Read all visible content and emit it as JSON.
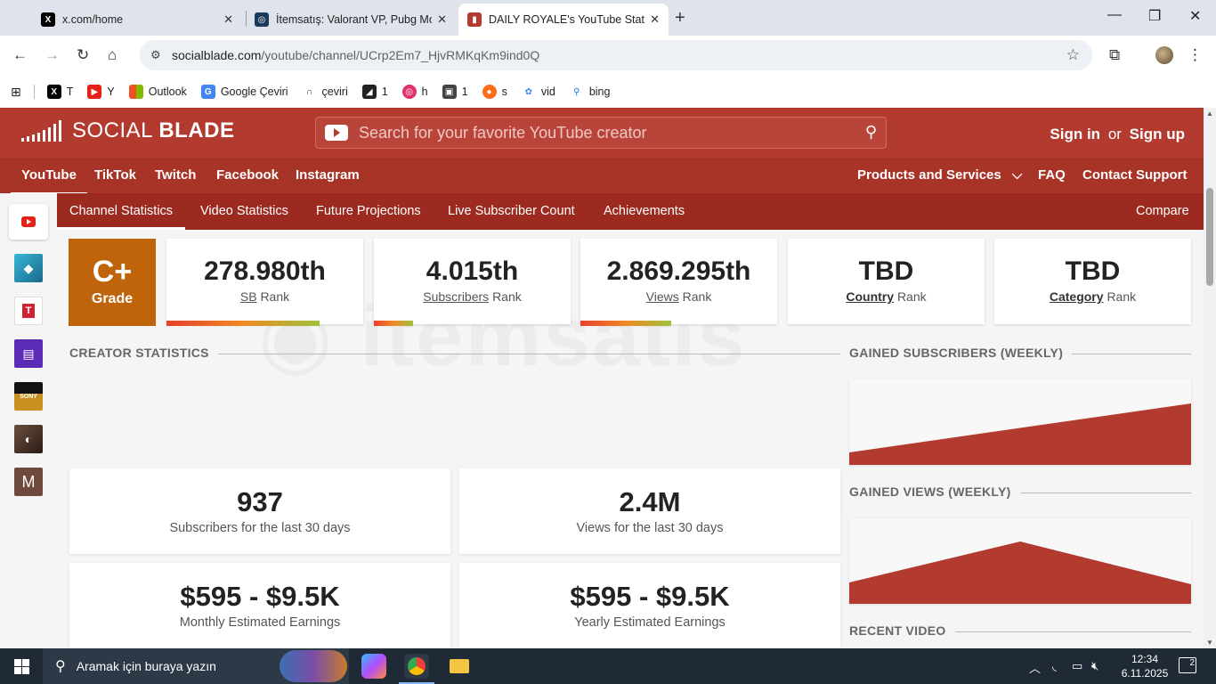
{
  "browser": {
    "tabs": [
      {
        "title": "x.com/home",
        "icon": "x-logo-icon",
        "active": false
      },
      {
        "title": "İtemsatış: Valorant VP, Pubg Mo",
        "icon": "itemsatis-icon",
        "active": false
      },
      {
        "title": "DAILY ROYALE's YouTube Statist",
        "icon": "socialblade-icon",
        "active": true
      }
    ],
    "url_host": "socialblade.com",
    "url_path": "/youtube/channel/UCrp2Em7_HjvRMKqKm9ind0Q",
    "bookmarks": [
      {
        "label": "T",
        "icon": "x-logo-icon"
      },
      {
        "label": "Y",
        "icon": "youtube-icon"
      },
      {
        "label": "Outlook",
        "icon": "microsoft-icon"
      },
      {
        "label": "Google Çeviri",
        "icon": "google-translate-icon"
      },
      {
        "label": "çeviri",
        "icon": "translate-icon"
      },
      {
        "label": "1",
        "icon": "bookmark-icon"
      },
      {
        "label": "h",
        "icon": "instagram-icon"
      },
      {
        "label": "1",
        "icon": "bookmark-icon"
      },
      {
        "label": "s",
        "icon": "bookmark-icon"
      },
      {
        "label": "vid",
        "icon": "bookmark-icon"
      },
      {
        "label": "bing",
        "icon": "search-icon"
      }
    ]
  },
  "socialblade": {
    "brand_light": "SOCIAL",
    "brand_bold": "BLADE",
    "search_placeholder": "Search for your favorite YouTube creator",
    "sign_in": "Sign in",
    "or": "or",
    "sign_up": "Sign up",
    "platforms": [
      "YouTube",
      "TikTok",
      "Twitch",
      "Facebook",
      "Instagram"
    ],
    "right_nav": {
      "products": "Products and Services",
      "faq": "FAQ",
      "contact": "Contact Support"
    },
    "subnav": [
      "Channel Statistics",
      "Video Statistics",
      "Future Projections",
      "Live Subscriber Count",
      "Achievements"
    ],
    "compare": "Compare",
    "accent_color": "#b23a2e",
    "grade": {
      "value": "C+",
      "label": "Grade"
    },
    "ranks": [
      {
        "value": "278.980th",
        "link": "SB",
        "suffix": "Rank",
        "bar_fraction": 0.78
      },
      {
        "value": "4.015th",
        "link": "Subscribers",
        "suffix": "Rank",
        "bar_fraction": 0.2
      },
      {
        "value": "2.869.295th",
        "link": "Views",
        "suffix": "Rank",
        "bar_fraction": 0.46
      },
      {
        "value": "TBD",
        "link": "Country",
        "suffix": "Rank",
        "bar_fraction": 0
      },
      {
        "value": "TBD",
        "link": "Category",
        "suffix": "Rank",
        "bar_fraction": 0
      }
    ],
    "creator_statistics_title": "CREATOR STATISTICS",
    "stats": [
      {
        "value": "937",
        "label": "Subscribers for the last 30 days"
      },
      {
        "value": "2.4M",
        "label": "Views for the last 30 days"
      },
      {
        "value": "$595 - $9.5K",
        "label": "Monthly Estimated Earnings"
      },
      {
        "value": "$595 - $9.5K",
        "label": "Yearly Estimated Earnings"
      }
    ],
    "gained_subscribers_title": "GAINED SUBSCRIBERS (WEEKLY)",
    "gained_views_title": "GAINED VIEWS (WEEKLY)",
    "recent_video_title": "RECENT VIDEO"
  },
  "taskbar": {
    "search_placeholder": "Aramak için buraya yazın",
    "time": "12:34",
    "date": "6.11.2025",
    "notifications": "2"
  }
}
